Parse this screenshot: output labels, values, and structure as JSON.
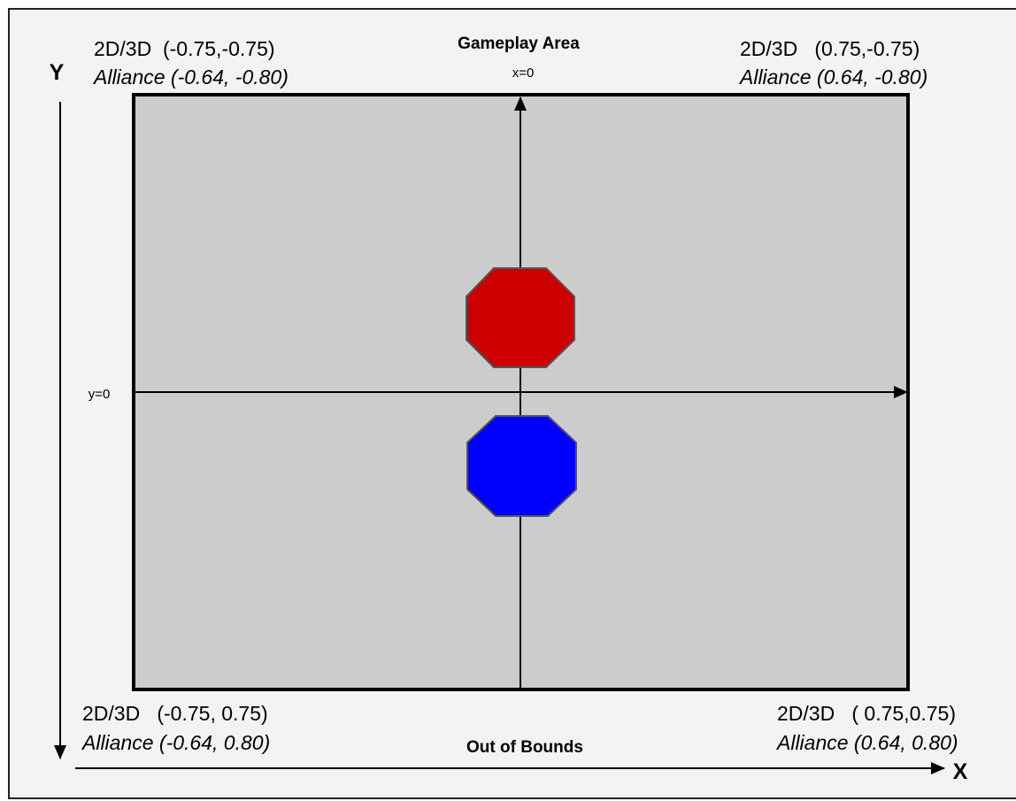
{
  "title": "Gameplay Area",
  "x_origin_label": "x=0",
  "y_origin_label": "y=0",
  "footer": "Out of Bounds",
  "axes": {
    "x": "X",
    "y": "Y"
  },
  "corners": [
    {
      "coords": "2D/3D  (-0.75,-0.75)",
      "alliance": "Alliance (-0.64, -0.80)"
    },
    {
      "coords": "2D/3D   (0.75,-0.75)",
      "alliance": "Alliance (0.64, -0.80)"
    },
    {
      "coords": "2D/3D   (-0.75, 0.75)",
      "alliance": "Alliance (-0.64, 0.80)"
    },
    {
      "coords": "2D/3D   ( 0.75,0.75)",
      "alliance": "Alliance (0.64, 0.80)"
    }
  ]
}
